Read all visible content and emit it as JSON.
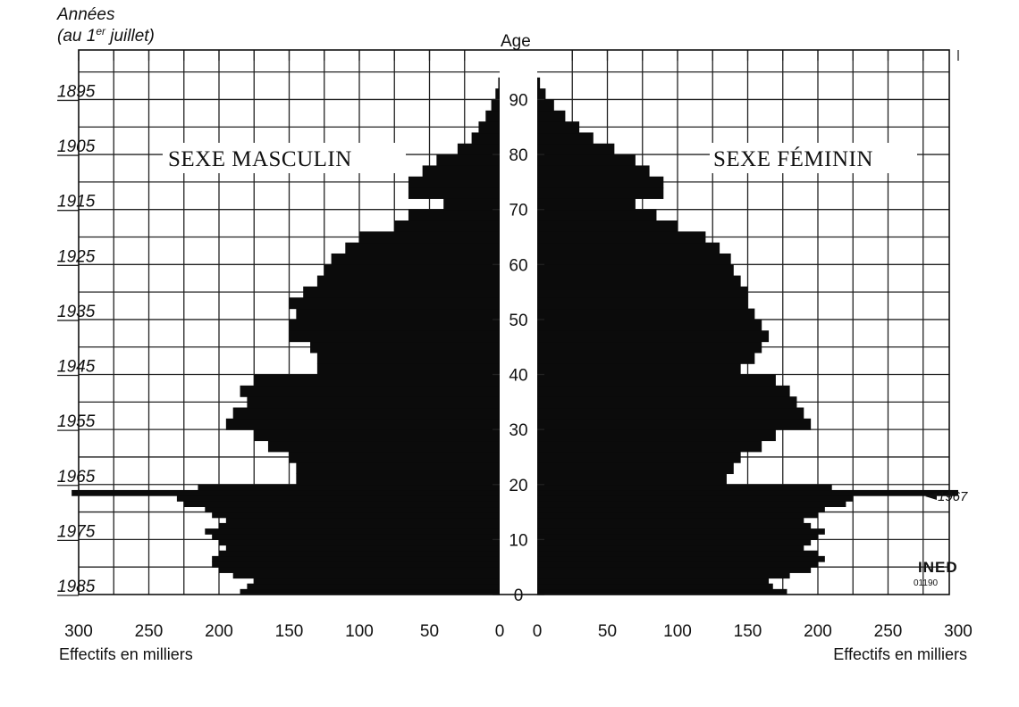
{
  "header": {
    "years_label": "Années",
    "years_sub_pre": "(au 1",
    "years_sub_sup": "er",
    "years_sub_post": " juillet)",
    "age_label": "Age"
  },
  "labels": {
    "male": "SEXE MASCULIN",
    "female": "SEXE FÉMININ",
    "xlabel_left": "Effectifs en milliers",
    "xlabel_right": "Effectifs en milliers",
    "annotation": "1967",
    "logo_main": "INED",
    "logo_code": "01190"
  },
  "chart_data": {
    "type": "bar",
    "orientation": "horizontal-pyramid",
    "age_ticks": [
      0,
      10,
      20,
      30,
      40,
      50,
      60,
      70,
      80,
      90
    ],
    "year_ticks": [
      "1895",
      "1905",
      "1915",
      "1925",
      "1935",
      "1945",
      "1955",
      "1965",
      "1975",
      "1985"
    ],
    "x_ticks_left": [
      "300",
      "250",
      "200",
      "150",
      "100",
      "50",
      "0"
    ],
    "x_ticks_right": [
      "0",
      "50",
      "100",
      "150",
      "200",
      "250",
      "300"
    ],
    "xlim": [
      0,
      300
    ],
    "ylim": [
      0,
      99
    ],
    "grid": true,
    "age_bands": [
      0,
      1,
      2,
      3,
      4,
      5,
      6,
      7,
      8,
      9,
      10,
      11,
      12,
      13,
      14,
      15,
      16,
      17,
      18,
      19,
      20,
      22,
      24,
      26,
      28,
      30,
      32,
      34,
      36,
      38,
      40,
      42,
      44,
      46,
      48,
      50,
      52,
      54,
      56,
      58,
      60,
      62,
      64,
      66,
      68,
      70,
      72,
      74,
      76,
      78,
      80,
      82,
      84,
      86,
      88,
      90,
      92,
      94
    ],
    "series": [
      {
        "name": "SEXE MASCULIN",
        "values": [
          185,
          180,
          175,
          190,
          200,
          205,
          205,
          200,
          195,
          200,
          205,
          210,
          200,
          195,
          205,
          210,
          225,
          230,
          305,
          215,
          145,
          145,
          150,
          165,
          175,
          195,
          190,
          180,
          185,
          175,
          130,
          130,
          135,
          150,
          150,
          145,
          150,
          140,
          130,
          125,
          120,
          110,
          100,
          75,
          65,
          40,
          65,
          65,
          55,
          45,
          30,
          20,
          15,
          10,
          6,
          3,
          1,
          0
        ]
      },
      {
        "name": "SEXE FÉMININ",
        "values": [
          178,
          168,
          165,
          180,
          195,
          200,
          205,
          200,
          190,
          195,
          200,
          205,
          195,
          190,
          200,
          205,
          220,
          225,
          300,
          210,
          135,
          140,
          145,
          160,
          170,
          195,
          190,
          185,
          180,
          170,
          145,
          155,
          160,
          165,
          160,
          155,
          150,
          150,
          145,
          140,
          138,
          130,
          120,
          100,
          85,
          70,
          90,
          90,
          80,
          70,
          55,
          40,
          30,
          20,
          12,
          6,
          2,
          0
        ]
      }
    ]
  }
}
